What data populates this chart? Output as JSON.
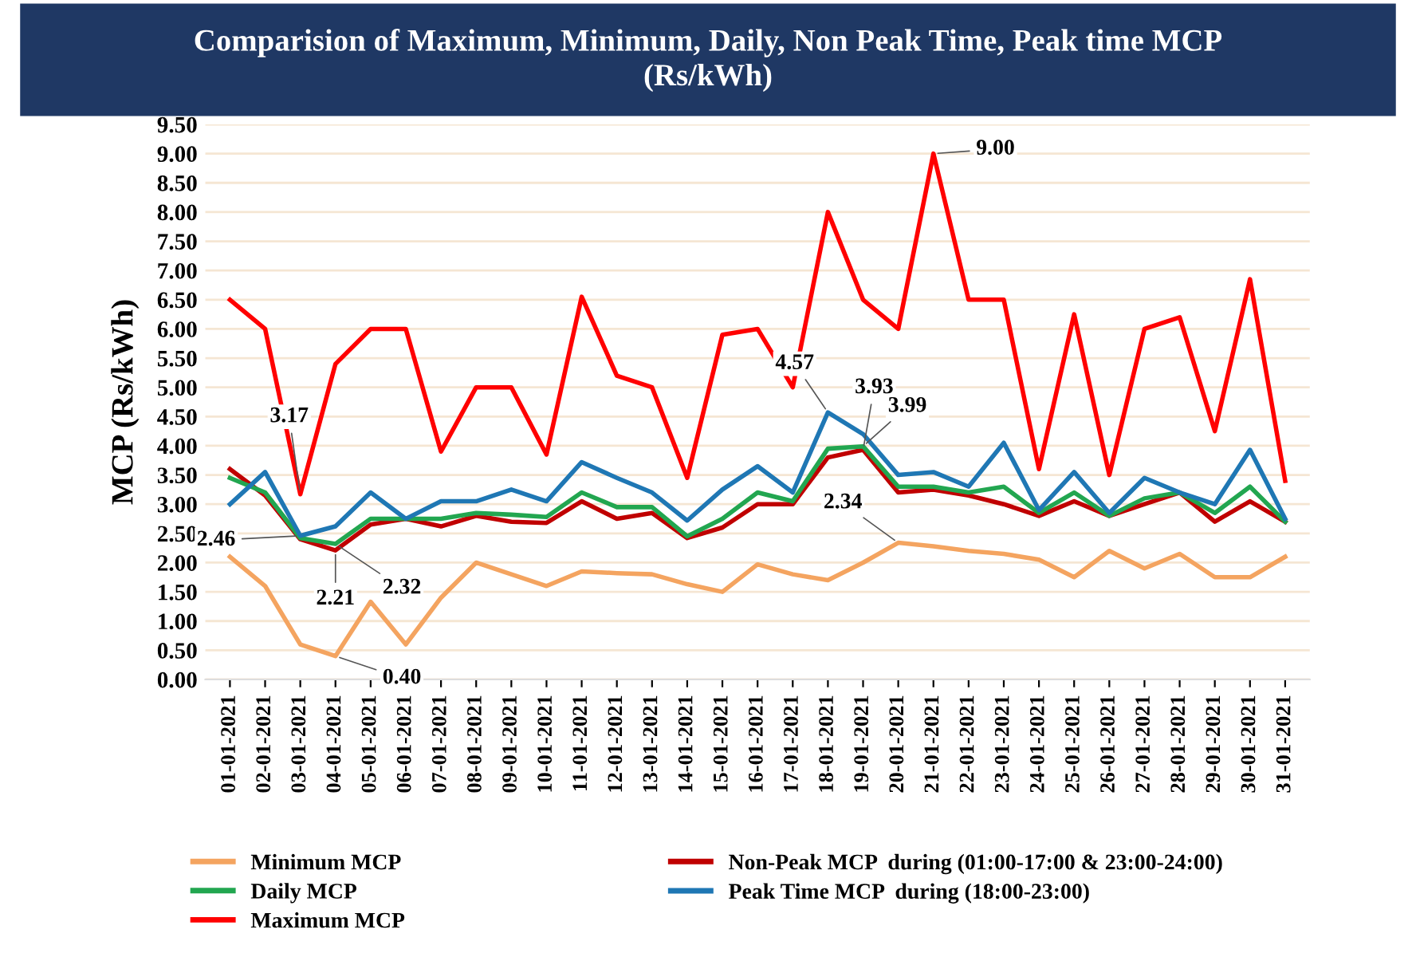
{
  "chart_data": {
    "type": "line",
    "title": "Comparision of Maximum, Minimum, Daily, Non Peak Time, Peak time MCP\n(Rs/kWh)",
    "ylabel": "MCP (Rs/kWh)",
    "categories": [
      "01-01-2021",
      "02-01-2021",
      "03-01-2021",
      "04-01-2021",
      "05-01-2021",
      "06-01-2021",
      "07-01-2021",
      "08-01-2021",
      "09-01-2021",
      "10-01-2021",
      "11-01-2021",
      "12-01-2021",
      "13-01-2021",
      "14-01-2021",
      "15-01-2021",
      "16-01-2021",
      "17-01-2021",
      "18-01-2021",
      "19-01-2021",
      "20-01-2021",
      "21-01-2021",
      "22-01-2021",
      "23-01-2021",
      "24-01-2021",
      "25-01-2021",
      "26-01-2021",
      "27-01-2021",
      "28-01-2021",
      "29-01-2021",
      "30-01-2021",
      "31-01-2021"
    ],
    "series": [
      {
        "name": "Minimum MCP",
        "color": "#f4a460",
        "values": [
          2.1,
          1.6,
          0.6,
          0.4,
          1.33,
          0.6,
          1.4,
          2.0,
          1.8,
          1.6,
          1.85,
          1.82,
          1.8,
          1.63,
          1.5,
          1.97,
          1.8,
          1.7,
          2.0,
          2.34,
          2.28,
          2.2,
          2.15,
          2.05,
          1.75,
          2.2,
          1.9,
          2.15,
          1.75,
          1.75,
          2.1
        ]
      },
      {
        "name": "Non-Peak MCP  during (01:00-17:00 & 23:00-24:00)",
        "color": "#c00000",
        "values": [
          3.6,
          3.15,
          2.4,
          2.21,
          2.65,
          2.75,
          2.62,
          2.8,
          2.7,
          2.68,
          3.05,
          2.75,
          2.85,
          2.42,
          2.6,
          3.0,
          3.0,
          3.8,
          3.93,
          3.2,
          3.25,
          3.15,
          3.0,
          2.8,
          3.05,
          2.8,
          3.0,
          3.2,
          2.7,
          3.05,
          2.7
        ]
      },
      {
        "name": "Daily MCP",
        "color": "#22a650",
        "values": [
          3.45,
          3.2,
          2.42,
          2.32,
          2.75,
          2.75,
          2.75,
          2.85,
          2.82,
          2.78,
          3.2,
          2.95,
          2.95,
          2.45,
          2.75,
          3.2,
          3.05,
          3.95,
          3.99,
          3.3,
          3.3,
          3.2,
          3.3,
          2.85,
          3.2,
          2.8,
          3.1,
          3.2,
          2.85,
          3.3,
          2.7
        ]
      },
      {
        "name": "Peak Time MCP  during (18:00-23:00)",
        "color": "#1f77b4",
        "values": [
          3.0,
          3.55,
          2.46,
          2.62,
          3.2,
          2.75,
          3.05,
          3.05,
          3.25,
          3.05,
          3.72,
          3.45,
          3.2,
          2.72,
          3.25,
          3.65,
          3.2,
          4.57,
          4.2,
          3.5,
          3.55,
          3.3,
          4.05,
          2.9,
          3.55,
          2.85,
          3.45,
          3.2,
          3.0,
          3.93,
          2.75
        ]
      },
      {
        "name": "Maximum MCP",
        "color": "#ff0000",
        "values": [
          6.5,
          6.0,
          3.17,
          5.4,
          6.0,
          6.0,
          3.9,
          5.0,
          5.0,
          3.85,
          6.55,
          5.2,
          5.0,
          3.45,
          5.9,
          6.0,
          5.0,
          8.0,
          6.5,
          6.0,
          9.0,
          6.5,
          6.5,
          3.6,
          6.25,
          3.5,
          6.0,
          6.2,
          4.25,
          6.85,
          3.4
        ]
      }
    ],
    "ylim": [
      0,
      9.5
    ],
    "yticks": [
      {
        "value": 0,
        "label": "0.00"
      },
      {
        "value": 0.5,
        "label": "0.50"
      },
      {
        "value": 1,
        "label": "1.00"
      },
      {
        "value": 1.5,
        "label": "1.50"
      },
      {
        "value": 2,
        "label": "2.00"
      },
      {
        "value": 2.5,
        "label": "2.50"
      },
      {
        "value": 3,
        "label": "3.00"
      },
      {
        "value": 3.5,
        "label": "3.50"
      },
      {
        "value": 4,
        "label": "4.00"
      },
      {
        "value": 4.5,
        "label": "4.50"
      },
      {
        "value": 5,
        "label": "5.00"
      },
      {
        "value": 5.5,
        "label": "5.50"
      },
      {
        "value": 6,
        "label": "6.00"
      },
      {
        "value": 6.5,
        "label": "6.50"
      },
      {
        "value": 7,
        "label": "7.00"
      },
      {
        "value": 7.5,
        "label": "7.50"
      },
      {
        "value": 8,
        "label": "8.00"
      },
      {
        "value": 8.5,
        "label": "8.50"
      },
      {
        "value": 9,
        "label": "9.00"
      },
      {
        "value": 9.5,
        "label": "9.50"
      }
    ],
    "grid": "y",
    "legend": "bottom",
    "marker": "none",
    "line_style": "solid",
    "annotations": [
      {
        "text": "3.17",
        "x": "03-01-2021",
        "y": 3.17
      },
      {
        "text": "2.46",
        "x": "03-01-2021",
        "y": 2.46
      },
      {
        "text": "2.21",
        "x": "04-01-2021",
        "y": 2.21
      },
      {
        "text": "2.32",
        "x": "04-01-2021",
        "y": 2.32
      },
      {
        "text": "0.40",
        "x": "04-01-2021",
        "y": 0.4
      },
      {
        "text": "4.57",
        "x": "18-01-2021",
        "y": 4.57
      },
      {
        "text": "3.93",
        "x": "19-01-2021",
        "y": 3.93
      },
      {
        "text": "3.99",
        "x": "19-01-2021",
        "y": 3.99
      },
      {
        "text": "2.34",
        "x": "20-01-2021",
        "y": 2.34
      },
      {
        "text": "9.00",
        "x": "21-01-2021",
        "y": 9.0
      }
    ]
  }
}
